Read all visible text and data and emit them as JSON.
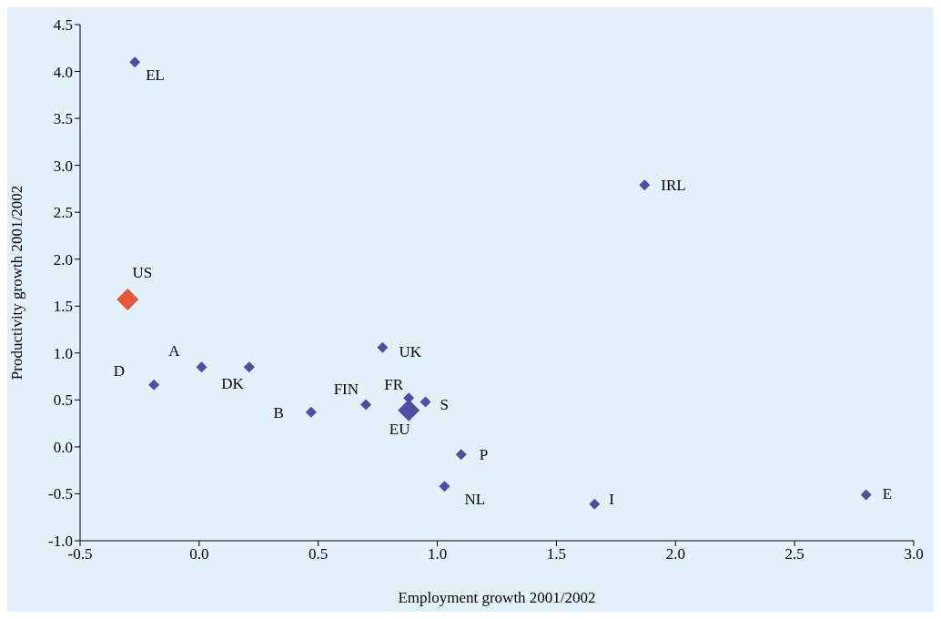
{
  "chart_data": {
    "type": "scatter",
    "xlabel": "Employment growth 2001/2002",
    "ylabel": "Productivity growth 2001/2002",
    "xlim": [
      -0.5,
      3.0
    ],
    "xticks": [
      {
        "value": -0.5,
        "label": "-0.5"
      },
      {
        "value": 0,
        "label": "0.0"
      },
      {
        "value": 0.5,
        "label": "0.5"
      },
      {
        "value": 1,
        "label": "1.0"
      },
      {
        "value": 1.5,
        "label": "1.5"
      },
      {
        "value": 2,
        "label": "2.0"
      },
      {
        "value": 2.5,
        "label": "2.5"
      },
      {
        "value": 3,
        "label": "3.0"
      }
    ],
    "ylim": [
      -1.0,
      4.5
    ],
    "yticks": [
      {
        "value": -1,
        "label": "-1.0"
      },
      {
        "value": -0.5,
        "label": "-0.5"
      },
      {
        "value": 0,
        "label": "0.0"
      },
      {
        "value": 0.5,
        "label": "0.5"
      },
      {
        "value": 1,
        "label": "1.0"
      },
      {
        "value": 1.5,
        "label": "1.5"
      },
      {
        "value": 2,
        "label": "2.0"
      },
      {
        "value": 2.5,
        "label": "2.5"
      },
      {
        "value": 3,
        "label": "3.0"
      },
      {
        "value": 3.5,
        "label": "3.5"
      },
      {
        "value": 4,
        "label": "4.0"
      },
      {
        "value": 4.5,
        "label": "4.5"
      }
    ],
    "grid": false,
    "legend": false,
    "marker": "diamond",
    "series": [
      {
        "color": "#4a4fa8",
        "x": [
          -0.27,
          -0.19,
          0.01,
          0.21,
          0.47,
          0.7,
          0.77,
          0.88,
          0.95,
          1.1,
          1.03,
          1.66,
          1.87,
          2.8
        ],
        "values": [
          4.1,
          0.66,
          0.85,
          0.85,
          0.37,
          0.45,
          1.06,
          0.52,
          0.48,
          -0.08,
          -0.42,
          -0.61,
          2.79,
          -0.51
        ]
      },
      {
        "name": "EU",
        "color": "#4a4fa8",
        "x": [
          0.88
        ],
        "values": [
          0.39
        ]
      },
      {
        "name": "US",
        "color": "#e8553a",
        "x": [
          -0.3
        ],
        "values": [
          1.57
        ]
      }
    ],
    "annotations": [
      {
        "text": "EL",
        "x": -0.27,
        "y": 4.1
      },
      {
        "text": "D",
        "x": -0.19,
        "y": 0.66
      },
      {
        "text": "A",
        "x": 0.01,
        "y": 0.85
      },
      {
        "text": "DK",
        "x": 0.21,
        "y": 0.85
      },
      {
        "text": "B",
        "x": 0.47,
        "y": 0.37
      },
      {
        "text": "FIN",
        "x": 0.7,
        "y": 0.45
      },
      {
        "text": "UK",
        "x": 0.77,
        "y": 1.06
      },
      {
        "text": "FR",
        "x": 0.88,
        "y": 0.52
      },
      {
        "text": "S",
        "x": 0.95,
        "y": 0.48
      },
      {
        "text": "P",
        "x": 1.1,
        "y": -0.08
      },
      {
        "text": "NL",
        "x": 1.03,
        "y": -0.42
      },
      {
        "text": "I",
        "x": 1.66,
        "y": -0.61
      },
      {
        "text": "IRL",
        "x": 1.87,
        "y": 2.79
      },
      {
        "text": "E",
        "x": 2.8,
        "y": -0.51
      }
    ]
  }
}
